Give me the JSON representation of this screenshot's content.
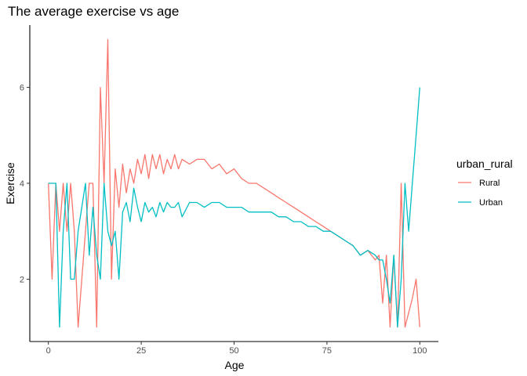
{
  "chart_data": {
    "type": "line",
    "title": "The average exercise vs age",
    "xlabel": "Age",
    "ylabel": "Exercise",
    "xlim": [
      -5,
      105
    ],
    "ylim": [
      0.7,
      7.3
    ],
    "xticks": [
      0,
      25,
      50,
      75,
      100
    ],
    "yticks": [
      2,
      4,
      6
    ],
    "grid": false,
    "legend": {
      "title": "urban_rural",
      "placement": "right"
    },
    "series": [
      {
        "name": "Rural",
        "color": "#F8766D",
        "x": [
          0,
          1,
          2,
          3,
          4,
          5,
          6,
          7,
          8,
          9,
          10,
          11,
          12,
          13,
          14,
          15,
          16,
          17,
          18,
          19,
          20,
          21,
          22,
          23,
          24,
          25,
          26,
          27,
          28,
          29,
          30,
          31,
          32,
          33,
          34,
          35,
          36,
          38,
          40,
          42,
          44,
          46,
          48,
          50,
          52,
          54,
          56,
          58,
          60,
          62,
          64,
          66,
          68,
          70,
          72,
          74,
          76,
          78,
          80,
          82,
          84,
          86,
          88,
          89,
          90,
          91,
          92,
          93,
          94,
          95,
          96,
          97,
          98,
          99,
          100
        ],
        "y": [
          4,
          2,
          4,
          3,
          4,
          3,
          4,
          3,
          1,
          2,
          3,
          4,
          4,
          1,
          6,
          4,
          7,
          2,
          4.3,
          3.5,
          4.4,
          3.8,
          4.3,
          4.0,
          4.5,
          4.2,
          4.6,
          4.1,
          4.6,
          4.3,
          4.6,
          4.2,
          4.5,
          4.3,
          4.6,
          4.3,
          4.5,
          4.4,
          4.5,
          4.5,
          4.3,
          4.4,
          4.2,
          4.3,
          4.1,
          4.0,
          4.0,
          3.9,
          3.8,
          3.7,
          3.6,
          3.5,
          3.4,
          3.3,
          3.2,
          3.1,
          3.0,
          2.9,
          2.8,
          2.7,
          2.5,
          2.6,
          2.4,
          2.5,
          1.5,
          2.5,
          1.0,
          2.5,
          1.0,
          4.0,
          1.0,
          1.3,
          1.6,
          2.0,
          1.0
        ]
      },
      {
        "name": "Urban",
        "color": "#00BFC4",
        "x": [
          0,
          1,
          2,
          3,
          4,
          5,
          6,
          7,
          8,
          9,
          10,
          11,
          12,
          13,
          14,
          15,
          16,
          17,
          18,
          19,
          20,
          21,
          22,
          23,
          24,
          25,
          26,
          27,
          28,
          29,
          30,
          31,
          32,
          33,
          34,
          35,
          36,
          38,
          40,
          42,
          44,
          46,
          48,
          50,
          52,
          54,
          56,
          58,
          60,
          62,
          64,
          66,
          68,
          70,
          72,
          74,
          76,
          78,
          80,
          82,
          84,
          86,
          88,
          89,
          90,
          91,
          92,
          93,
          94,
          95,
          96,
          97,
          98,
          99,
          100
        ],
        "y": [
          4,
          4,
          4,
          1,
          3,
          4,
          2,
          2,
          3,
          3.5,
          4,
          2.5,
          3.5,
          2.5,
          2,
          4,
          3,
          2.7,
          3,
          2,
          3.4,
          3.6,
          3.2,
          3.9,
          3.5,
          3.2,
          3.6,
          3.4,
          3.5,
          3.3,
          3.6,
          3.4,
          3.6,
          3.5,
          3.5,
          3.6,
          3.3,
          3.6,
          3.6,
          3.5,
          3.6,
          3.6,
          3.5,
          3.5,
          3.5,
          3.4,
          3.4,
          3.4,
          3.4,
          3.3,
          3.3,
          3.2,
          3.2,
          3.1,
          3.1,
          3.0,
          3.0,
          2.9,
          2.8,
          2.7,
          2.5,
          2.6,
          2.5,
          2.4,
          2.4,
          2.0,
          1.5,
          2.5,
          1.0,
          2.0,
          4.0,
          3.0,
          4.0,
          5.0,
          6.0
        ]
      }
    ]
  }
}
